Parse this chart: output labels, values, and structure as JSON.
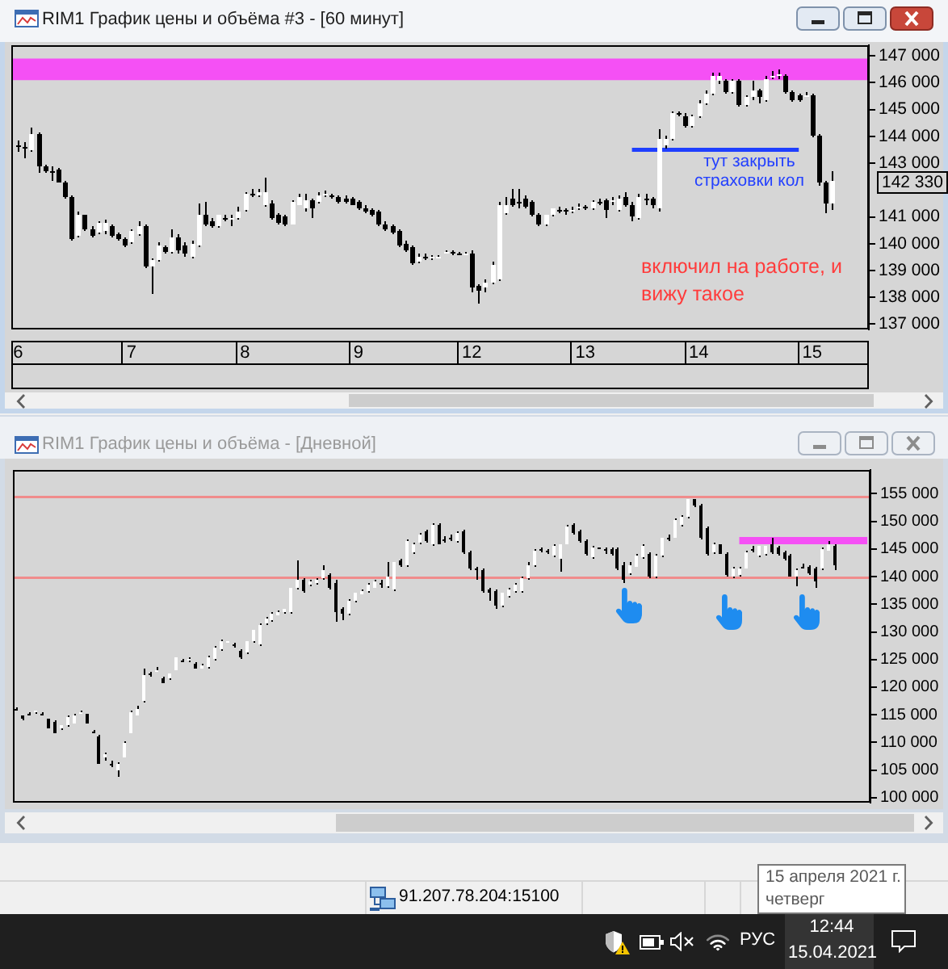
{
  "chart_data": [
    {
      "type": "candlestick",
      "title": "RIM1 График цены и объёма #3 - [60 минут]",
      "categories": [
        "6",
        null,
        null,
        null,
        null,
        null,
        null,
        null,
        null,
        null,
        null,
        null,
        null,
        null,
        null,
        null,
        null,
        "7",
        null,
        null,
        null,
        null,
        null,
        null,
        null,
        null,
        null,
        null,
        null,
        null,
        null,
        null,
        null,
        null,
        "8",
        null,
        null,
        null,
        null,
        null,
        null,
        null,
        null,
        null,
        null,
        null,
        null,
        null,
        null,
        null,
        null,
        "9",
        null,
        null,
        null,
        null,
        null,
        null,
        null,
        null,
        null,
        null,
        null,
        null,
        null,
        null,
        null,
        null,
        "12",
        null,
        null,
        null,
        null,
        null,
        null,
        null,
        null,
        null,
        null,
        null,
        null,
        null,
        null,
        null,
        null,
        "13",
        null,
        null,
        null,
        null,
        null,
        null,
        null,
        null,
        null,
        null,
        null,
        null,
        null,
        null,
        null,
        null,
        "14",
        null,
        null,
        null,
        null,
        null,
        null,
        null,
        null,
        null,
        null,
        null,
        null,
        null,
        null,
        null,
        null,
        "15",
        null,
        null,
        null
      ],
      "ohlc": [
        [
          143660,
          143820,
          143420,
          143620
        ],
        [
          143620,
          143760,
          143160,
          143540
        ],
        [
          143500,
          144300,
          143420,
          144060
        ],
        [
          144060,
          144160,
          142620,
          142860
        ],
        [
          142860,
          142960,
          142620,
          142700
        ],
        [
          142700,
          142860,
          142360,
          142660
        ],
        [
          142760,
          142820,
          142260,
          142300
        ],
        [
          142260,
          142340,
          141700,
          141760
        ],
        [
          141760,
          141820,
          140140,
          140200
        ],
        [
          140300,
          141220,
          140220,
          141100
        ],
        [
          141060,
          141100,
          140500,
          140560
        ],
        [
          140560,
          140660,
          140220,
          140300
        ],
        [
          140420,
          140860,
          140360,
          140780
        ],
        [
          140460,
          140900,
          140340,
          140800
        ],
        [
          140660,
          140700,
          140220,
          140300
        ],
        [
          140340,
          140420,
          140100,
          140160
        ],
        [
          140200,
          140260,
          139900,
          139960
        ],
        [
          140060,
          140560,
          140020,
          140460
        ],
        [
          140340,
          140820,
          140300,
          140660
        ],
        [
          140660,
          140740,
          139100,
          139160
        ],
        [
          139160,
          139460,
          138100,
          139380
        ],
        [
          139400,
          140060,
          139340,
          139960
        ],
        [
          139900,
          139960,
          139660,
          139700
        ],
        [
          139700,
          140560,
          139620,
          140260
        ],
        [
          140260,
          140340,
          139660,
          139740
        ],
        [
          139940,
          140060,
          139500,
          139660
        ],
        [
          139540,
          140100,
          139460,
          140020
        ],
        [
          139960,
          141500,
          139900,
          141100
        ],
        [
          141100,
          141560,
          140660,
          140700
        ],
        [
          140860,
          140960,
          140620,
          140660
        ],
        [
          140660,
          141100,
          140620,
          141060
        ],
        [
          140980,
          141100,
          140860,
          140940
        ],
        [
          140940,
          141060,
          140660,
          140980
        ],
        [
          140960,
          141360,
          140900,
          141220
        ],
        [
          141260,
          141940,
          141220,
          141860
        ],
        [
          141860,
          142020,
          141740,
          141820
        ],
        [
          141820,
          142060,
          141740,
          141900
        ],
        [
          141460,
          142460,
          141380,
          141940
        ],
        [
          141500,
          141620,
          140900,
          140960
        ],
        [
          141060,
          141140,
          140740,
          140800
        ],
        [
          141020,
          141100,
          140660,
          140700
        ],
        [
          140740,
          141620,
          140700,
          141540
        ],
        [
          141460,
          141860,
          141420,
          141740
        ],
        [
          141300,
          141860,
          141220,
          141620
        ],
        [
          141620,
          141700,
          140960,
          141300
        ],
        [
          141540,
          141900,
          141500,
          141820
        ],
        [
          141820,
          141960,
          141740,
          141860
        ],
        [
          141780,
          141860,
          141700,
          141740
        ],
        [
          141740,
          141820,
          141500,
          141580
        ],
        [
          141700,
          141780,
          141520,
          141560
        ],
        [
          141700,
          141760,
          141420,
          141460
        ],
        [
          141540,
          141620,
          141260,
          141300
        ],
        [
          141340,
          141420,
          141160,
          141220
        ],
        [
          141260,
          141340,
          141020,
          141060
        ],
        [
          141180,
          141260,
          140660,
          140700
        ],
        [
          140740,
          140820,
          140500,
          140560
        ],
        [
          140660,
          140740,
          140340,
          140420
        ],
        [
          140460,
          140540,
          139900,
          139960
        ],
        [
          140000,
          140100,
          139700,
          139760
        ],
        [
          139860,
          139940,
          139220,
          139260
        ],
        [
          139340,
          139620,
          139260,
          139540
        ],
        [
          139500,
          139620,
          139380,
          139460
        ],
        [
          139460,
          139580,
          139380,
          139500
        ],
        [
          139500,
          139560,
          139420,
          139520
        ],
        [
          139660,
          139780,
          139620,
          139700
        ],
        [
          139680,
          139740,
          139600,
          139660
        ],
        [
          139660,
          139720,
          139580,
          139640
        ],
        [
          139640,
          139700,
          139580,
          139660
        ],
        [
          139660,
          139740,
          138160,
          138360
        ],
        [
          138400,
          138500,
          137760,
          138260
        ],
        [
          138360,
          138660,
          138160,
          138540
        ],
        [
          138540,
          139300,
          138460,
          139220
        ],
        [
          138660,
          141560,
          138580,
          141460
        ],
        [
          141140,
          141740,
          141100,
          141460
        ],
        [
          141660,
          142060,
          141380,
          141460
        ],
        [
          141580,
          142020,
          141340,
          141540
        ],
        [
          141660,
          141820,
          141300,
          141360
        ],
        [
          141540,
          141620,
          141000,
          141060
        ],
        [
          141060,
          141140,
          140660,
          140700
        ],
        [
          140740,
          141100,
          140660,
          141060
        ],
        [
          141060,
          141340,
          141020,
          141300
        ],
        [
          141260,
          141360,
          141140,
          141240
        ],
        [
          141240,
          141340,
          141100,
          141220
        ],
        [
          141220,
          141360,
          141140,
          141260
        ],
        [
          141380,
          141500,
          141260,
          141400
        ],
        [
          141380,
          141460,
          141260,
          141360
        ],
        [
          141340,
          141620,
          141260,
          141560
        ],
        [
          141560,
          141660,
          141420,
          141540
        ],
        [
          141620,
          141700,
          140960,
          141260
        ],
        [
          141600,
          141740,
          141460,
          141620
        ],
        [
          141260,
          141820,
          141220,
          141700
        ],
        [
          141740,
          141900,
          141380,
          141460
        ],
        [
          141460,
          141540,
          140860,
          141000
        ],
        [
          140980,
          141860,
          140920,
          141740
        ],
        [
          141700,
          141860,
          141460,
          141620
        ],
        [
          141660,
          141740,
          141340,
          141460
        ],
        [
          141300,
          144260,
          141220,
          143900
        ],
        [
          143660,
          144020,
          143540,
          143900
        ],
        [
          143900,
          144960,
          143820,
          144860
        ],
        [
          144860,
          144960,
          144740,
          144820
        ],
        [
          144780,
          144860,
          144300,
          144360
        ],
        [
          144360,
          144820,
          144300,
          144740
        ],
        [
          144740,
          145340,
          144700,
          145260
        ],
        [
          145260,
          145700,
          145180,
          145620
        ],
        [
          145620,
          146360,
          145540,
          146260
        ],
        [
          146060,
          146360,
          145980,
          146260
        ],
        [
          146060,
          146140,
          145580,
          145660
        ],
        [
          145660,
          146160,
          145620,
          146060
        ],
        [
          146060,
          146140,
          145100,
          145160
        ],
        [
          145160,
          145560,
          145100,
          145460
        ],
        [
          145460,
          146060,
          145380,
          145700
        ],
        [
          145700,
          145780,
          145260,
          145460
        ],
        [
          145360,
          146260,
          145300,
          146140
        ],
        [
          146220,
          146460,
          146140,
          146260
        ],
        [
          146260,
          146500,
          146140,
          146300
        ],
        [
          146260,
          146340,
          145620,
          145660
        ],
        [
          145660,
          145740,
          145300,
          145360
        ],
        [
          145540,
          145620,
          145300,
          145360
        ],
        [
          145540,
          145660,
          145460,
          145560
        ],
        [
          145560,
          145620,
          143960,
          144000
        ],
        [
          144000,
          144060,
          142160,
          142260
        ],
        [
          142260,
          142340,
          141160,
          141480
        ],
        [
          141480,
          142720,
          141280,
          142330
        ]
      ],
      "series": [
        {
          "type": "line",
          "color": "#1f3fff",
          "values": [
            null,
            null,
            null,
            null,
            null,
            null,
            null,
            null,
            null,
            null,
            null,
            null,
            null,
            null,
            null,
            null,
            null,
            null,
            null,
            null,
            null,
            null,
            null,
            null,
            null,
            null,
            null,
            null,
            null,
            null,
            null,
            null,
            null,
            null,
            null,
            null,
            null,
            null,
            null,
            null,
            null,
            null,
            null,
            null,
            null,
            null,
            null,
            null,
            null,
            null,
            null,
            null,
            null,
            null,
            null,
            null,
            null,
            null,
            null,
            null,
            null,
            null,
            null,
            null,
            null,
            null,
            null,
            null,
            null,
            null,
            null,
            null,
            null,
            null,
            null,
            null,
            null,
            null,
            null,
            null,
            null,
            null,
            null,
            null,
            null,
            null,
            null,
            null,
            null,
            null,
            null,
            null,
            143500,
            143500,
            143500,
            143500,
            143500,
            143500,
            143500,
            143500,
            143500,
            143500,
            143500,
            143500,
            143500,
            143500,
            143500,
            143500,
            143500,
            143500,
            143500,
            143500,
            143500,
            143500,
            143500,
            143500,
            143500,
            143500,
            null,
            null,
            null,
            null,
            null
          ]
        }
      ],
      "ylim": [
        136800,
        147400
      ],
      "yticks": [
        {
          "value": 137000,
          "label": "137 000"
        },
        {
          "value": 138000,
          "label": "138 000"
        },
        {
          "value": 139000,
          "label": "139 000"
        },
        {
          "value": 140000,
          "label": "140 000"
        },
        {
          "value": 141000,
          "label": "141 000"
        },
        {
          "value": 143000,
          "label": "143 000"
        },
        {
          "value": 144000,
          "label": "144 000"
        },
        {
          "value": 145000,
          "label": "145 000"
        },
        {
          "value": 146000,
          "label": "146 000"
        },
        {
          "value": 147000,
          "label": "147 000"
        }
      ],
      "bands": [
        {
          "axis": "y",
          "from": 146100,
          "to": 146900,
          "color": "#f550f5"
        }
      ],
      "annotations": [
        "142 330",
        "тут закрыть страховки кол",
        "включил на работе, и вижу такое"
      ]
    },
    {
      "type": "candlestick",
      "title": "RIM1 График цены и объёма - [Дневной]",
      "categories": [
        null,
        null,
        null,
        null,
        null,
        null,
        null,
        null,
        null,
        null,
        null,
        null,
        null,
        null,
        null,
        null,
        null,
        null,
        null,
        null,
        null,
        null,
        null,
        null,
        null,
        null,
        null,
        null,
        null,
        null,
        null,
        null,
        null,
        null,
        null,
        null,
        null,
        null,
        null,
        null,
        null,
        null,
        null,
        null,
        null,
        null,
        null,
        null,
        null,
        null,
        null,
        null,
        null,
        null,
        null,
        null,
        null,
        null,
        null,
        null,
        null,
        null,
        null,
        null,
        null,
        null,
        null,
        null,
        null,
        null,
        null,
        null,
        null,
        null,
        null,
        null,
        null,
        null,
        null,
        null,
        null,
        null,
        null,
        null,
        null,
        null,
        null,
        null,
        null,
        null,
        null,
        null,
        null,
        null,
        null,
        null,
        null,
        null,
        null,
        null,
        null,
        null,
        null,
        null,
        null,
        null,
        null,
        null,
        null,
        null,
        null,
        null,
        null,
        null,
        null,
        null,
        null,
        null,
        null,
        null,
        null,
        null,
        null,
        null,
        null,
        null,
        null,
        null,
        null,
        null,
        null,
        null,
        null,
        null
      ],
      "ohlc": [
        [
          116100,
          116300,
          115900,
          116100
        ],
        [
          114800,
          115000,
          114100,
          114400
        ],
        [
          115300,
          115600,
          115000,
          115300
        ],
        [
          115600,
          115900,
          115300,
          115700
        ],
        [
          115200,
          115500,
          114900,
          115100
        ],
        [
          114200,
          114400,
          112400,
          112600
        ],
        [
          113600,
          114000,
          111600,
          111800
        ],
        [
          112400,
          113200,
          112200,
          113000
        ],
        [
          113000,
          114800,
          112800,
          114600
        ],
        [
          113500,
          115200,
          113300,
          114900
        ],
        [
          115400,
          115800,
          115100,
          115500
        ],
        [
          115100,
          115300,
          113300,
          113500
        ],
        [
          112100,
          112300,
          111800,
          112000
        ],
        [
          111100,
          111300,
          106000,
          106200
        ],
        [
          107200,
          108300,
          106800,
          107900
        ],
        [
          106100,
          106600,
          105400,
          106000
        ],
        [
          104800,
          106300,
          103800,
          106000
        ],
        [
          107300,
          110100,
          107200,
          109900
        ],
        [
          111800,
          115700,
          111600,
          115500
        ],
        [
          114900,
          116500,
          114800,
          116100
        ],
        [
          117500,
          123500,
          117200,
          122100
        ],
        [
          122500,
          122900,
          122000,
          122400
        ],
        [
          123100,
          123700,
          122700,
          123200
        ],
        [
          121600,
          121900,
          120600,
          120800
        ],
        [
          121600,
          122600,
          121300,
          122400
        ],
        [
          123200,
          125500,
          123000,
          125300
        ],
        [
          124800,
          125200,
          124400,
          124700
        ],
        [
          124900,
          125300,
          124600,
          125000
        ],
        [
          124200,
          124500,
          123300,
          123500
        ],
        [
          123500,
          124300,
          123300,
          124000
        ],
        [
          123700,
          125800,
          123500,
          125500
        ],
        [
          125000,
          127400,
          124800,
          127200
        ],
        [
          126900,
          128600,
          126700,
          128400
        ],
        [
          128100,
          128400,
          127900,
          128200
        ],
        [
          127700,
          128100,
          127200,
          127600
        ],
        [
          126700,
          127000,
          125000,
          125300
        ],
        [
          126300,
          128400,
          126100,
          128200
        ],
        [
          128200,
          130500,
          128000,
          130400
        ],
        [
          127800,
          131500,
          127400,
          131100
        ],
        [
          131500,
          132800,
          131300,
          132500
        ],
        [
          132100,
          133500,
          131900,
          133300
        ],
        [
          133100,
          134000,
          132900,
          133700
        ],
        [
          133500,
          134200,
          133300,
          134100
        ],
        [
          133500,
          138100,
          133300,
          138000
        ],
        [
          138000,
          143000,
          137600,
          139300
        ],
        [
          139300,
          139600,
          137200,
          137400
        ],
        [
          138500,
          139500,
          138300,
          139100
        ],
        [
          138900,
          139700,
          138600,
          139300
        ],
        [
          139600,
          142000,
          139300,
          141300
        ],
        [
          140300,
          140700,
          137700,
          138000
        ],
        [
          138900,
          139300,
          131800,
          133500
        ],
        [
          134200,
          134600,
          132100,
          133300
        ],
        [
          133300,
          136000,
          132900,
          135700
        ],
        [
          135700,
          137200,
          135400,
          137000
        ],
        [
          136900,
          137700,
          136700,
          137400
        ],
        [
          137400,
          138800,
          137200,
          138600
        ],
        [
          138100,
          139300,
          138000,
          139100
        ],
        [
          138700,
          139300,
          138100,
          138600
        ],
        [
          138300,
          142500,
          138100,
          139900
        ],
        [
          137700,
          142700,
          137500,
          142500
        ],
        [
          142800,
          143200,
          141900,
          142000
        ],
        [
          142000,
          146700,
          141900,
          146400
        ],
        [
          144500,
          146200,
          144200,
          145900
        ],
        [
          146100,
          147900,
          145900,
          147700
        ],
        [
          148100,
          148400,
          146100,
          146400
        ],
        [
          145800,
          149600,
          145500,
          149400
        ],
        [
          149400,
          149600,
          145800,
          145900
        ],
        [
          146800,
          147400,
          146100,
          146700
        ],
        [
          147000,
          147500,
          146300,
          146900
        ],
        [
          146400,
          148100,
          146100,
          147900
        ],
        [
          148300,
          148600,
          144200,
          144500
        ],
        [
          144500,
          144800,
          141300,
          141600
        ],
        [
          141400,
          141700,
          139300,
          141300
        ],
        [
          141300,
          141600,
          137200,
          137400
        ],
        [
          137700,
          138000,
          135700,
          137000
        ],
        [
          137400,
          137700,
          134200,
          134700
        ],
        [
          134700,
          137200,
          134400,
          137000
        ],
        [
          136400,
          137900,
          136200,
          137700
        ],
        [
          137400,
          138800,
          137200,
          138600
        ],
        [
          137400,
          139900,
          137200,
          139600
        ],
        [
          139600,
          142500,
          139300,
          142200
        ],
        [
          142000,
          145000,
          141900,
          144800
        ],
        [
          144900,
          145300,
          144400,
          144800
        ],
        [
          144600,
          145000,
          144000,
          144500
        ],
        [
          143800,
          145800,
          143500,
          145500
        ],
        [
          143200,
          145900,
          140900,
          145800
        ],
        [
          145900,
          149300,
          145800,
          149100
        ],
        [
          149400,
          149800,
          147700,
          147900
        ],
        [
          148100,
          148400,
          146100,
          146400
        ],
        [
          146400,
          146700,
          143700,
          144000
        ],
        [
          143500,
          145600,
          143200,
          145300
        ],
        [
          145200,
          145400,
          145000,
          145200
        ],
        [
          144900,
          145400,
          144200,
          144800
        ],
        [
          145000,
          145300,
          143700,
          144000
        ],
        [
          145000,
          145300,
          141300,
          141600
        ],
        [
          142200,
          142500,
          138800,
          139500
        ],
        [
          140600,
          142500,
          140300,
          142200
        ],
        [
          141900,
          144000,
          141700,
          143800
        ],
        [
          143500,
          145800,
          143200,
          145500
        ],
        [
          144000,
          144400,
          139700,
          139900
        ],
        [
          139900,
          144000,
          139700,
          143800
        ],
        [
          143700,
          147100,
          143500,
          146900
        ],
        [
          147000,
          147500,
          146400,
          146900
        ],
        [
          147100,
          150600,
          146900,
          150300
        ],
        [
          149400,
          151100,
          149200,
          150800
        ],
        [
          150800,
          154100,
          150600,
          153900
        ],
        [
          153900,
          154100,
          152500,
          152800
        ],
        [
          152800,
          153100,
          146700,
          146900
        ],
        [
          148900,
          149200,
          143800,
          144000
        ],
        [
          144500,
          146100,
          144200,
          145900
        ],
        [
          145800,
          145900,
          144000,
          144200
        ],
        [
          144000,
          144300,
          140100,
          140300
        ],
        [
          139900,
          141900,
          139700,
          141600
        ],
        [
          140300,
          141900,
          140100,
          141600
        ],
        [
          141600,
          144700,
          141400,
          144500
        ],
        [
          145100,
          145500,
          144500,
          145000
        ],
        [
          143800,
          145700,
          143600,
          145500
        ],
        [
          144000,
          145700,
          143800,
          145500
        ],
        [
          145900,
          146900,
          144200,
          144500
        ],
        [
          145200,
          145500,
          143800,
          144000
        ],
        [
          144500,
          144800,
          143000,
          143200
        ],
        [
          143800,
          144000,
          139900,
          140100
        ],
        [
          139900,
          141600,
          138300,
          141300
        ],
        [
          141900,
          142400,
          141500,
          141900
        ],
        [
          141900,
          142200,
          140300,
          140600
        ],
        [
          141600,
          141900,
          138100,
          139100
        ],
        [
          141600,
          145200,
          141300,
          145000
        ],
        [
          144800,
          146400,
          144600,
          145800
        ],
        [
          145500,
          145800,
          141300,
          142000
        ],
        null,
        null,
        null,
        null,
        null
      ],
      "series": [
        {
          "type": "line",
          "color": "#f550f5",
          "values": [
            null,
            null,
            null,
            null,
            null,
            null,
            null,
            null,
            null,
            null,
            null,
            null,
            null,
            null,
            null,
            null,
            null,
            null,
            null,
            null,
            null,
            null,
            null,
            null,
            null,
            null,
            null,
            null,
            null,
            null,
            null,
            null,
            null,
            null,
            null,
            null,
            null,
            null,
            null,
            null,
            null,
            null,
            null,
            null,
            null,
            null,
            null,
            null,
            null,
            null,
            null,
            null,
            null,
            null,
            null,
            null,
            null,
            null,
            null,
            null,
            null,
            null,
            null,
            null,
            null,
            null,
            null,
            null,
            null,
            null,
            null,
            null,
            null,
            null,
            null,
            null,
            null,
            null,
            null,
            null,
            null,
            null,
            null,
            null,
            null,
            null,
            null,
            null,
            null,
            null,
            null,
            null,
            null,
            null,
            null,
            null,
            null,
            null,
            null,
            null,
            null,
            null,
            null,
            null,
            null,
            null,
            null,
            null,
            null,
            null,
            null,
            null,
            null,
            146500,
            146500,
            146500,
            146500,
            146500,
            146500,
            146500,
            146500,
            146500,
            146500,
            146500,
            146500,
            146500,
            146500,
            146500,
            146500,
            146500,
            146500,
            146500,
            146500,
            146500
          ]
        }
      ],
      "ylim": [
        99100,
        159300
      ],
      "yticks": [
        {
          "value": 100000,
          "label": "100 000"
        },
        {
          "value": 105000,
          "label": "105 000"
        },
        {
          "value": 110000,
          "label": "110 000"
        },
        {
          "value": 115000,
          "label": "115 000"
        },
        {
          "value": 120000,
          "label": "120 000"
        },
        {
          "value": 125000,
          "label": "125 000"
        },
        {
          "value": 130000,
          "label": "130 000"
        },
        {
          "value": 135000,
          "label": "135 000"
        },
        {
          "value": 140000,
          "label": "140 000"
        },
        {
          "value": 145000,
          "label": "145 000"
        },
        {
          "value": 150000,
          "label": "150 000"
        },
        {
          "value": 155000,
          "label": "155 000"
        }
      ],
      "tick_labels": "y",
      "ref_lines": [
        {
          "axis": "y",
          "value": 154400,
          "color": "#f08c8c"
        },
        {
          "axis": "y",
          "value": 139800,
          "color": "#f08c8c"
        }
      ],
      "annotations": [
        "91.207.78.204:15100",
        "15 апреля 2021 г.",
        "четверг",
        "РУС",
        "12:44",
        "15.04.2021"
      ]
    }
  ]
}
